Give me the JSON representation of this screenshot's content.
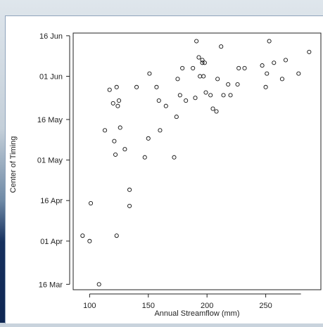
{
  "chart_data": {
    "type": "scatter",
    "xlabel": "Annual Streamflow (mm)",
    "ylabel": "Center of Timing",
    "xlim": [
      86,
      297
    ],
    "ylim": [
      73,
      168
    ],
    "x_ticks": [
      {
        "value": 100,
        "label": "100"
      },
      {
        "value": 150,
        "label": "150"
      },
      {
        "value": 200,
        "label": "200"
      },
      {
        "value": 250,
        "label": "250"
      }
    ],
    "y_ticks": [
      {
        "value": 75,
        "label": "16 Mar"
      },
      {
        "value": 91,
        "label": "01 Apr"
      },
      {
        "value": 106,
        "label": "16 Apr"
      },
      {
        "value": 121,
        "label": "01 May"
      },
      {
        "value": 136,
        "label": "16 May"
      },
      {
        "value": 152,
        "label": "01 Jun"
      },
      {
        "value": 167,
        "label": "16 Jun"
      }
    ],
    "x_axis_max": 280,
    "grid": false,
    "points": [
      [
        94,
        93
      ],
      [
        100,
        91
      ],
      [
        101,
        105
      ],
      [
        108,
        75
      ],
      [
        113,
        132
      ],
      [
        117,
        147
      ],
      [
        120,
        142
      ],
      [
        121,
        128
      ],
      [
        122,
        123
      ],
      [
        123,
        148
      ],
      [
        123,
        93
      ],
      [
        124,
        141
      ],
      [
        125,
        143
      ],
      [
        126,
        133
      ],
      [
        130,
        125
      ],
      [
        134,
        110
      ],
      [
        134,
        104
      ],
      [
        140,
        148
      ],
      [
        147,
        122
      ],
      [
        150,
        129
      ],
      [
        151,
        153
      ],
      [
        157,
        148
      ],
      [
        159,
        143
      ],
      [
        160,
        132
      ],
      [
        165,
        141
      ],
      [
        172,
        122
      ],
      [
        174,
        137
      ],
      [
        175,
        151
      ],
      [
        177,
        145
      ],
      [
        179,
        155
      ],
      [
        182,
        143
      ],
      [
        188,
        155
      ],
      [
        190,
        144
      ],
      [
        191,
        165
      ],
      [
        193,
        159
      ],
      [
        194,
        152
      ],
      [
        196,
        158
      ],
      [
        196,
        157
      ],
      [
        197,
        152
      ],
      [
        198,
        157
      ],
      [
        199,
        146
      ],
      [
        203,
        145
      ],
      [
        205,
        140
      ],
      [
        208,
        139
      ],
      [
        209,
        151
      ],
      [
        212,
        163
      ],
      [
        214,
        145
      ],
      [
        218,
        149
      ],
      [
        220,
        145
      ],
      [
        226,
        149
      ],
      [
        227,
        155
      ],
      [
        232,
        155
      ],
      [
        247,
        156
      ],
      [
        250,
        148
      ],
      [
        251,
        153
      ],
      [
        253,
        165
      ],
      [
        257,
        157
      ],
      [
        264,
        151
      ],
      [
        267,
        158
      ],
      [
        278,
        153
      ],
      [
        287,
        161
      ]
    ]
  }
}
